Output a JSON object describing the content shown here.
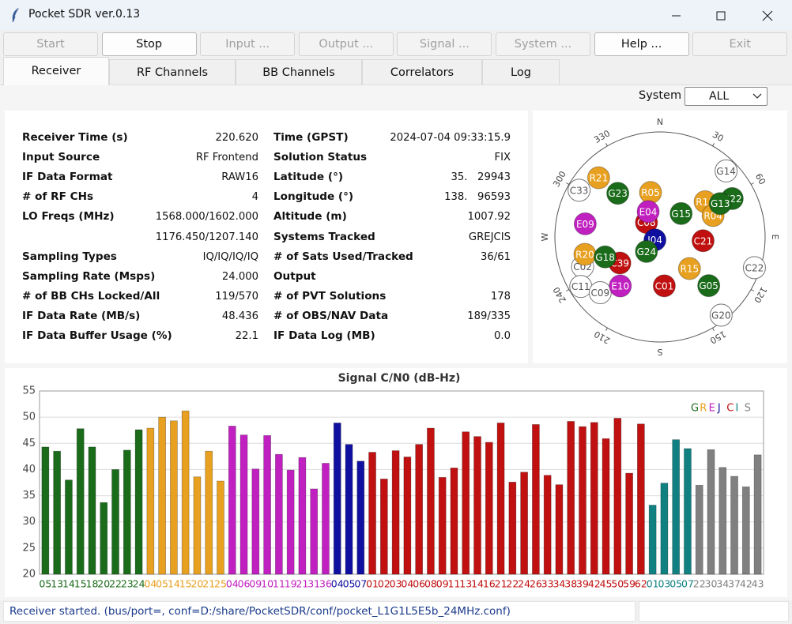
{
  "window": {
    "title": "Pocket SDR ver.0.13"
  },
  "toolbar": {
    "buttons": [
      {
        "label": "Start",
        "enabled": false
      },
      {
        "label": "Stop",
        "enabled": true
      },
      {
        "label": "Input ...",
        "enabled": false
      },
      {
        "label": "Output ...",
        "enabled": false
      },
      {
        "label": "Signal ...",
        "enabled": false
      },
      {
        "label": "System ...",
        "enabled": false
      },
      {
        "label": "Help ...",
        "enabled": true
      },
      {
        "label": "Exit",
        "enabled": false
      }
    ]
  },
  "tabs": {
    "items": [
      "Receiver",
      "RF Channels",
      "BB Channels",
      "Correlators",
      "Log"
    ],
    "selected": 0
  },
  "system_selector": {
    "label": "System",
    "value": "ALL"
  },
  "info": {
    "left": [
      {
        "label": "Receiver Time (s)",
        "value": "220.620"
      },
      {
        "label": "Input Source",
        "value": "RF Frontend"
      },
      {
        "label": "IF Data Format",
        "value": "RAW16"
      },
      {
        "label": "# of RF CHs",
        "value": "4"
      },
      {
        "label": "LO Freqs (MHz)",
        "value": "1568.000/1602.000"
      },
      {
        "value": "1176.450/1207.140"
      },
      {
        "label": "Sampling Types",
        "value": "IQ/IQ/IQ/IQ"
      },
      {
        "label": "Sampling Rate (Msps)",
        "value": "24.000"
      },
      {
        "label": "# of BB CHs Locked/All",
        "value": "119/570"
      },
      {
        "label": "IF Data Rate (MB/s)",
        "value": "48.436"
      },
      {
        "label": "IF Data Buffer Usage (%)",
        "value": "22.1"
      }
    ],
    "right": [
      {
        "label": "Time (GPST)",
        "value": "2024-07-04 09:33:15.9"
      },
      {
        "label": "Solution Status",
        "value": "FIX"
      },
      {
        "label": "Latitude (°)",
        "value": "35.   29943"
      },
      {
        "label": "Longitude (°)",
        "value": "138.   96593"
      },
      {
        "label": "Altitude (m)",
        "value": "1007.92"
      },
      {
        "label": "Systems Tracked",
        "value": "GREJCIS"
      },
      {
        "label": "# of Sats Used/Tracked",
        "value": "36/61"
      },
      {
        "label": "Output"
      },
      {
        "label": "# of PVT Solutions",
        "value": "178"
      },
      {
        "label": "# of OBS/NAV Data",
        "value": "189/335"
      },
      {
        "label": "IF Data Log (MB)",
        "value": "0.0"
      }
    ]
  },
  "skyplot": {
    "directions": [
      "N",
      "E",
      "S",
      "W"
    ],
    "azimuth_ticks": [
      30,
      60,
      120,
      150,
      210,
      240,
      300,
      330
    ],
    "satellites": [
      {
        "name": "C33",
        "color": "#ffffff",
        "az": 300,
        "el": 10
      },
      {
        "name": "G14",
        "color": "#ffffff",
        "az": 45,
        "el": 10
      },
      {
        "name": "C02",
        "color": "#ffffff",
        "az": 249,
        "el": 19
      },
      {
        "name": "C11",
        "color": "#ffffff",
        "az": 238,
        "el": 10
      },
      {
        "name": "C09",
        "color": "#ffffff",
        "az": 227,
        "el": 20
      },
      {
        "name": "C22",
        "color": "#ffffff",
        "az": 108,
        "el": 5
      },
      {
        "name": "G20",
        "color": "#ffffff",
        "az": 142,
        "el": 5
      },
      {
        "name": "R21",
        "color": "#e8a020",
        "az": 314,
        "el": 17
      },
      {
        "name": "G23",
        "color": "#1a6b1a",
        "az": 316,
        "el": 38
      },
      {
        "name": "C08",
        "color": "#c01010",
        "az": 317,
        "el": 73
      },
      {
        "name": "R05",
        "color": "#e8a020",
        "az": 348,
        "el": 51
      },
      {
        "name": "E04",
        "color": "#c020c0",
        "az": 335,
        "el": 66
      },
      {
        "name": "G15",
        "color": "#1a6b1a",
        "az": 42,
        "el": 63
      },
      {
        "name": "R11",
        "color": "#e8a020",
        "az": 52,
        "el": 41
      },
      {
        "name": "G22",
        "color": "#1a6b1a",
        "az": 62,
        "el": 20
      },
      {
        "name": "R04",
        "color": "#e8a020",
        "az": 68,
        "el": 41
      },
      {
        "name": "G13",
        "color": "#1a6b1a",
        "az": 61,
        "el": 31
      },
      {
        "name": "E09",
        "color": "#c020c0",
        "az": 280,
        "el": 25
      },
      {
        "name": "C21",
        "color": "#c01010",
        "az": 95,
        "el": 53
      },
      {
        "name": "J04",
        "color": "#1010a0",
        "az": 240,
        "el": 85
      },
      {
        "name": "G24",
        "color": "#1a6b1a",
        "az": 223,
        "el": 73
      },
      {
        "name": "C39",
        "color": "#c01010",
        "az": 237,
        "el": 49
      },
      {
        "name": "R20",
        "color": "#e8a020",
        "az": 257,
        "el": 24
      },
      {
        "name": "G18",
        "color": "#1a6b1a",
        "az": 250,
        "el": 40
      },
      {
        "name": "E10",
        "color": "#c020c0",
        "az": 219,
        "el": 36
      },
      {
        "name": "C01",
        "color": "#c01010",
        "az": 175,
        "el": 48
      },
      {
        "name": "R15",
        "color": "#e8a020",
        "az": 137,
        "el": 53
      },
      {
        "name": "G05",
        "color": "#1a6b1a",
        "az": 135,
        "el": 31
      }
    ]
  },
  "chart_data": {
    "type": "bar",
    "title": "Signal C/N0 (dB-Hz)",
    "ylim": [
      20,
      55
    ],
    "yticks": [
      20,
      25,
      30,
      35,
      40,
      45,
      50,
      55
    ],
    "grid": true,
    "series": [
      {
        "name": "G",
        "color": "#1a6b1a",
        "categories": [
          "05",
          "13",
          "14",
          "15",
          "18",
          "20",
          "22",
          "23",
          "24"
        ],
        "values": [
          44.3,
          43.5,
          38.0,
          47.8,
          44.3,
          33.7,
          40.0,
          43.7,
          47.6
        ]
      },
      {
        "name": "R",
        "color": "#e8a020",
        "categories": [
          "04",
          "05",
          "14",
          "15",
          "20",
          "21",
          "25"
        ],
        "values": [
          47.9,
          50.0,
          49.3,
          51.2,
          38.6,
          43.5,
          37.8
        ]
      },
      {
        "name": "E",
        "color": "#c020c0",
        "categories": [
          "04",
          "06",
          "09",
          "10",
          "11",
          "19",
          "21",
          "31",
          "36"
        ],
        "values": [
          48.3,
          46.6,
          40.1,
          46.5,
          42.9,
          39.9,
          42.3,
          36.3,
          41.2
        ]
      },
      {
        "name": "J",
        "color": "#1010a0",
        "categories": [
          "04",
          "05",
          "07"
        ],
        "values": [
          48.9,
          44.8,
          41.6
        ]
      },
      {
        "name": "C",
        "color": "#c01010",
        "categories": [
          "01",
          "02",
          "03",
          "04",
          "06",
          "08",
          "09",
          "11",
          "13",
          "14",
          "16",
          "21",
          "22",
          "24",
          "26",
          "33",
          "34",
          "38",
          "39",
          "42",
          "45",
          "50",
          "59",
          "62"
        ],
        "values": [
          43.3,
          38.2,
          43.6,
          42.4,
          44.8,
          47.9,
          38.5,
          40.3,
          47.2,
          46.3,
          45.2,
          48.9,
          37.6,
          39.5,
          48.6,
          38.9,
          37.1,
          49.2,
          48.2,
          49.0,
          45.9,
          49.8,
          39.3,
          48.7
        ]
      },
      {
        "name": "I",
        "color": "#108080",
        "categories": [
          "01",
          "03",
          "05",
          "07"
        ],
        "values": [
          33.2,
          37.4,
          45.7,
          44.0
        ]
      },
      {
        "name": "S",
        "color": "#808080",
        "categories": [
          "22",
          "30",
          "34",
          "37",
          "42",
          "43"
        ],
        "values": [
          37.0,
          43.8,
          40.4,
          38.7,
          36.7,
          42.8
        ]
      }
    ]
  },
  "status": {
    "message": "Receiver started. (bus/port=, conf=D:/share/PocketSDR/conf/pocket_L1G1L5E5b_24MHz.conf)"
  }
}
